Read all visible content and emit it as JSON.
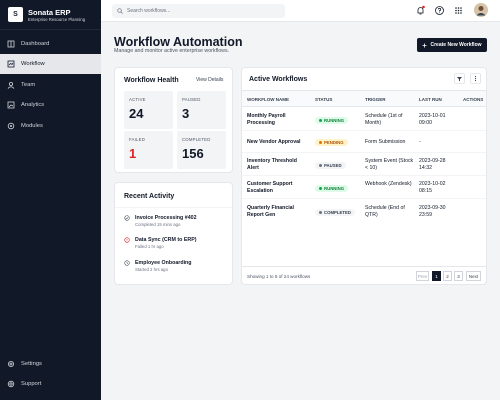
{
  "sidebar": {
    "brand": {
      "logo": "S",
      "name": "Sonata ERP",
      "tagline": "Enterprise Resource Planning"
    },
    "nav": [
      "Dashboard",
      "Workflow",
      "Team",
      "Analytics",
      "Modules"
    ],
    "footer_nav": [
      "Settings",
      "Support"
    ]
  },
  "topbar": {
    "search_placeholder": "Search workflows..."
  },
  "header": {
    "title": "Workflow Automation",
    "subtitle": "Manage and monitor active enterprise workflows.",
    "button": "Create New Workflow"
  },
  "health": {
    "title": "Workflow Health",
    "link": "View Details",
    "stats": [
      {
        "label": "ACTIVE",
        "value": 24
      },
      {
        "label": "PAUSED",
        "value": 3
      },
      {
        "label": "FAILED",
        "value": 1
      },
      {
        "label": "COMPLETED",
        "value": 156
      }
    ]
  },
  "activity": {
    "title": "Recent Activity",
    "items": [
      {
        "title": "Invoice Processing #402",
        "meta": "Completed 15 mins ago"
      },
      {
        "title": "Data Sync (CRM to ERP)",
        "meta": "Failed 1 hr ago"
      },
      {
        "title": "Employee Onboarding",
        "meta": "Started 2 hrs ago"
      }
    ]
  },
  "workflows": {
    "title": "Active Workflows",
    "columns": [
      "WORKFLOW NAME",
      "STATUS",
      "TRIGGER",
      "LAST RUN",
      "ACTIONS"
    ],
    "rows": [
      {
        "name": "Monthly Payroll Processing",
        "status": "RUNNING",
        "trigger": "Schedule (1st of Month)",
        "last_run": "2023-10-01 09:00"
      },
      {
        "name": "New Vendor Approval",
        "status": "PENDING",
        "trigger": "Form Submission",
        "last_run": "-"
      },
      {
        "name": "Inventory Threshold Alert",
        "status": "PAUSED",
        "trigger": "System Event (Stock < 10)",
        "last_run": "2023-09-28 14:32"
      },
      {
        "name": "Customer Support Escalation",
        "status": "RUNNING",
        "trigger": "Webhook (Zendesk)",
        "last_run": "2023-10-02 08:15"
      },
      {
        "name": "Quarterly Financial Report Gen",
        "status": "COMPLETED",
        "trigger": "Schedule (End of QTR)",
        "last_run": "2023-09-30 23:59"
      }
    ],
    "summary": "Showing 1 to 5 of 24 workflows",
    "pagination": [
      "Prev",
      "1",
      "2",
      "3",
      "Next"
    ]
  }
}
